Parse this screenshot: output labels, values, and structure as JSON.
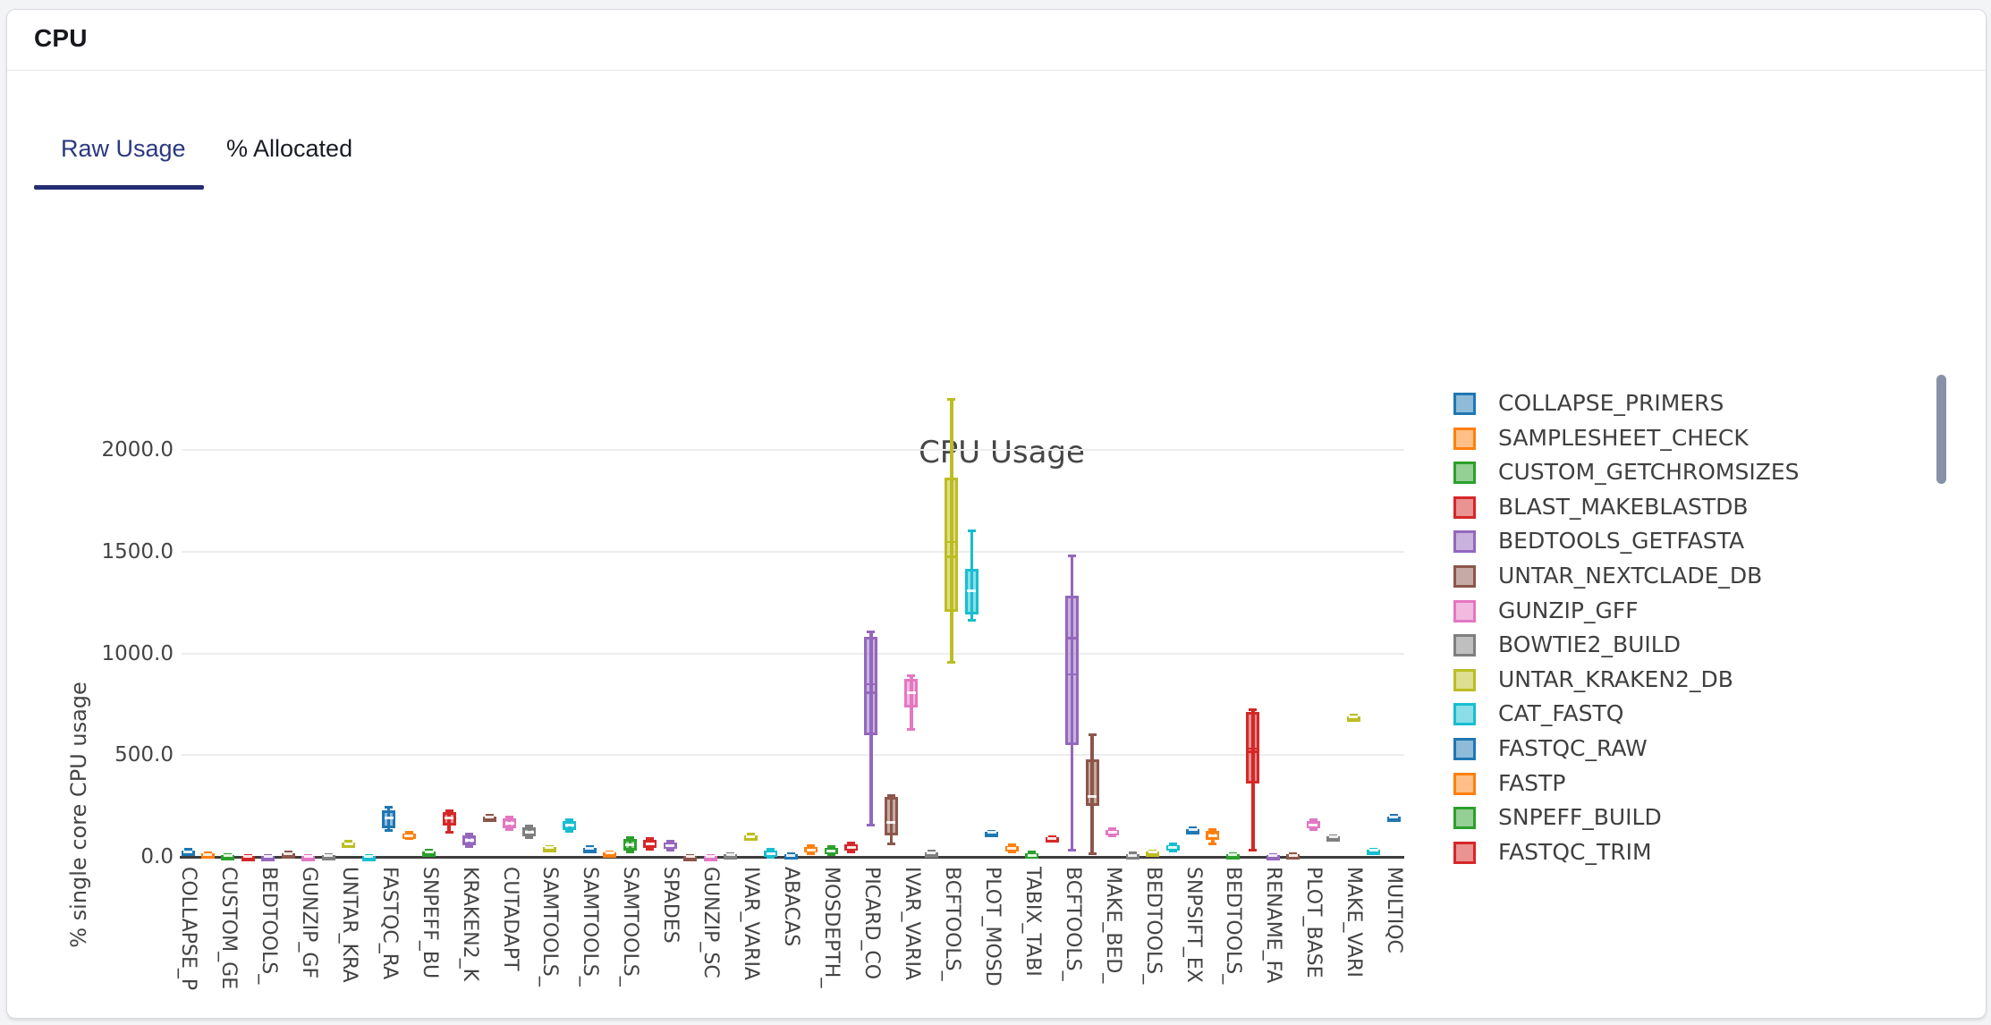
{
  "header": {
    "title": "CPU"
  },
  "tabs": {
    "active": "Raw Usage",
    "inactive": "% Allocated"
  },
  "legend_scrollbar_color": "#8792a8",
  "chart_data": {
    "type": "box",
    "title": "CPU Usage",
    "y_axis": {
      "title": "% single core CPU usage",
      "tick_labels": [
        "0.0",
        "500.0",
        "1000.0",
        "1500.0",
        "2000.0"
      ],
      "tick_values": [
        0,
        500,
        1000,
        1500,
        2000
      ],
      "range": [
        0,
        2350
      ],
      "grid": true
    },
    "x_axis": {
      "note": "61 box categories; tick labels shown for every other category, truncated",
      "tick_labels": [
        "COLLAPSE_P",
        "CUSTOM_GE",
        "BEDTOOLS_",
        "GUNZIP_GF",
        "UNTAR_KRA",
        "FASTQC_RA",
        "SNPEFF_BU",
        "KRAKEN2_K",
        "CUTADAPT",
        "SAMTOOLS_",
        "SAMTOOLS_",
        "SAMTOOLS_",
        "SPADES",
        "GUNZIP_SC",
        "IVAR_VARIA",
        "ABACAS",
        "MOSDEPTH_",
        "PICARD_CO",
        "IVAR_VARIA",
        "BCFTOOLS_",
        "PLOT_MOSD",
        "TABIX_TABI",
        "BCFTOOLS_",
        "MAKE_BED_",
        "BEDTOOLS_",
        "SNPSIFT_EX",
        "BEDTOOLS_",
        "RENAME_FA",
        "PLOT_BASE",
        "MAKE_VARI",
        "MULTIQC"
      ]
    },
    "palette": [
      "#1f77b4",
      "#ff7f0e",
      "#2ca02c",
      "#d62728",
      "#9467bd",
      "#8c564b",
      "#e377c2",
      "#7f7f7f",
      "#bcbd22",
      "#17becf"
    ],
    "legend": {
      "position": "right",
      "items": [
        {
          "label": "COLLAPSE_PRIMERS",
          "color_index": 0
        },
        {
          "label": "SAMPLESHEET_CHECK",
          "color_index": 1
        },
        {
          "label": "CUSTOM_GETCHROMSIZES",
          "color_index": 2
        },
        {
          "label": "BLAST_MAKEBLASTDB",
          "color_index": 3
        },
        {
          "label": "BEDTOOLS_GETFASTA",
          "color_index": 4
        },
        {
          "label": "UNTAR_NEXTCLADE_DB",
          "color_index": 5
        },
        {
          "label": "GUNZIP_GFF",
          "color_index": 6
        },
        {
          "label": "BOWTIE2_BUILD",
          "color_index": 7
        },
        {
          "label": "UNTAR_KRAKEN2_DB",
          "color_index": 8
        },
        {
          "label": "CAT_FASTQ",
          "color_index": 9
        },
        {
          "label": "FASTQC_RAW",
          "color_index": 0
        },
        {
          "label": "FASTP",
          "color_index": 1
        },
        {
          "label": "SNPEFF_BUILD",
          "color_index": 2
        },
        {
          "label": "FASTQC_TRIM",
          "color_index": 3
        }
      ]
    },
    "boxes": [
      {
        "k": 0,
        "color_index": 0,
        "stats": {
          "min": 18,
          "q1": 21,
          "med": 25,
          "q3": 30,
          "max": 36
        }
      },
      {
        "k": 1,
        "color_index": 1,
        "stats": {
          "min": 8,
          "q1": 11,
          "med": 13,
          "q3": 16,
          "max": 19
        }
      },
      {
        "k": 2,
        "color_index": 2,
        "stats": {
          "min": 3,
          "q1": 5,
          "med": 8,
          "q3": 10,
          "max": 12
        }
      },
      {
        "k": 3,
        "color_index": 3,
        "stats": {
          "min": 0,
          "q1": 1,
          "med": 3,
          "q3": 5,
          "max": 7
        }
      },
      {
        "k": 4,
        "color_index": 4,
        "stats": {
          "min": 1,
          "q1": 2,
          "med": 4,
          "q3": 6,
          "max": 8
        }
      },
      {
        "k": 5,
        "color_index": 5,
        "stats": {
          "min": 10,
          "q1": 13,
          "med": 16,
          "q3": 19,
          "max": 22
        }
      },
      {
        "k": 6,
        "color_index": 6,
        "stats": {
          "min": 0,
          "q1": 1,
          "med": 2,
          "q3": 4,
          "max": 5
        }
      },
      {
        "k": 7,
        "color_index": 7,
        "stats": {
          "min": 2,
          "q1": 4,
          "med": 6,
          "q3": 8,
          "max": 10
        }
      },
      {
        "k": 8,
        "color_index": 8,
        "stats": {
          "min": 55,
          "q1": 60,
          "med": 65,
          "q3": 70,
          "max": 75
        }
      },
      {
        "k": 9,
        "color_index": 9,
        "stats": {
          "min": 0,
          "q1": 1,
          "med": 3,
          "q3": 5,
          "max": 7
        }
      },
      {
        "k": 10,
        "color_index": 0,
        "stats": {
          "min": 130,
          "q1": 141,
          "med": 190,
          "q3": 229,
          "max": 243
        }
      },
      {
        "k": 11,
        "color_index": 1,
        "stats": {
          "min": 88,
          "q1": 95,
          "med": 105,
          "q3": 115,
          "max": 121
        }
      },
      {
        "k": 12,
        "color_index": 2,
        "stats": {
          "min": 15,
          "q1": 19,
          "med": 23,
          "q3": 27,
          "max": 31
        }
      },
      {
        "k": 13,
        "color_index": 3,
        "stats": {
          "min": 119,
          "q1": 155,
          "med": 190,
          "q3": 220,
          "max": 226
        }
      },
      {
        "k": 14,
        "color_index": 4,
        "stats": {
          "min": 50,
          "q1": 55,
          "med": 80,
          "q3": 104,
          "max": 110
        }
      },
      {
        "k": 15,
        "color_index": 5,
        "stats": {
          "min": 186,
          "q1": 191,
          "med": 195,
          "q3": 199,
          "max": 204
        }
      },
      {
        "k": 16,
        "color_index": 6,
        "stats": {
          "min": 134,
          "q1": 141,
          "med": 164,
          "q3": 189,
          "max": 196
        }
      },
      {
        "k": 17,
        "color_index": 7,
        "stats": {
          "min": 94,
          "q1": 101,
          "med": 120,
          "q3": 144,
          "max": 151
        }
      },
      {
        "k": 18,
        "color_index": 8,
        "stats": {
          "min": 36,
          "q1": 40,
          "med": 44,
          "q3": 48,
          "max": 52
        }
      },
      {
        "k": 19,
        "color_index": 9,
        "stats": {
          "min": 124,
          "q1": 132,
          "med": 154,
          "q3": 176,
          "max": 182
        }
      },
      {
        "k": 20,
        "color_index": 0,
        "stats": {
          "min": 31,
          "q1": 36,
          "med": 40,
          "q3": 45,
          "max": 50
        }
      },
      {
        "k": 21,
        "color_index": 1,
        "stats": {
          "min": 12,
          "q1": 15,
          "med": 18,
          "q3": 22,
          "max": 26
        }
      },
      {
        "k": 22,
        "color_index": 2,
        "stats": {
          "min": 24,
          "q1": 31,
          "med": 58,
          "q3": 88,
          "max": 96
        }
      },
      {
        "k": 23,
        "color_index": 3,
        "stats": {
          "min": 38,
          "q1": 44,
          "med": 64,
          "q3": 84,
          "max": 91
        }
      },
      {
        "k": 24,
        "color_index": 4,
        "stats": {
          "min": 34,
          "q1": 40,
          "med": 54,
          "q3": 70,
          "max": 76
        }
      },
      {
        "k": 25,
        "color_index": 5,
        "stats": {
          "min": 0,
          "q1": 2,
          "med": 4,
          "q3": 6,
          "max": 8
        }
      },
      {
        "k": 26,
        "color_index": 6,
        "stats": {
          "min": 0,
          "q1": 2,
          "med": 4,
          "q3": 6,
          "max": 8
        }
      },
      {
        "k": 27,
        "color_index": 7,
        "stats": {
          "min": 3,
          "q1": 6,
          "med": 9,
          "q3": 12,
          "max": 15
        }
      },
      {
        "k": 28,
        "color_index": 8,
        "stats": {
          "min": 92,
          "q1": 97,
          "med": 101,
          "q3": 105,
          "max": 110
        }
      },
      {
        "k": 29,
        "color_index": 9,
        "stats": {
          "min": 0,
          "q1": 2,
          "med": 14,
          "q3": 31,
          "max": 37
        }
      },
      {
        "k": 30,
        "color_index": 0,
        "stats": {
          "min": 0,
          "q1": 2,
          "med": 7,
          "q3": 13,
          "max": 17
        }
      },
      {
        "k": 31,
        "color_index": 1,
        "stats": {
          "min": 17,
          "q1": 22,
          "med": 34,
          "q3": 48,
          "max": 54
        }
      },
      {
        "k": 32,
        "color_index": 2,
        "stats": {
          "min": 9,
          "q1": 13,
          "med": 27,
          "q3": 44,
          "max": 51
        }
      },
      {
        "k": 33,
        "color_index": 3,
        "stats": {
          "min": 26,
          "q1": 31,
          "med": 46,
          "q3": 62,
          "max": 69
        }
      },
      {
        "k": 34,
        "color_index": 4,
        "stats": {
          "min": 155,
          "q1": 600,
          "med": 805,
          "q3": 1080,
          "max": 1105
        },
        "mean": 850
      },
      {
        "k": 35,
        "color_index": 5,
        "stats": {
          "min": 62,
          "q1": 106,
          "med": 170,
          "q3": 295,
          "max": 302
        },
        "mean": 200
      },
      {
        "k": 36,
        "color_index": 6,
        "stats": {
          "min": 626,
          "q1": 735,
          "med": 805,
          "q3": 875,
          "max": 892
        },
        "mean": 810
      },
      {
        "k": 37,
        "color_index": 7,
        "stats": {
          "min": 9,
          "q1": 14,
          "med": 18,
          "q3": 22,
          "max": 27
        }
      },
      {
        "k": 38,
        "color_index": 8,
        "stats": {
          "min": 955,
          "q1": 1203,
          "med": 1476,
          "q3": 1863,
          "max": 2251
        },
        "mean": 1546
      },
      {
        "k": 39,
        "color_index": 9,
        "stats": {
          "min": 1165,
          "q1": 1190,
          "med": 1308,
          "q3": 1414,
          "max": 1604
        },
        "mean": 1320
      },
      {
        "k": 40,
        "color_index": 0,
        "stats": {
          "min": 111,
          "q1": 115,
          "med": 119,
          "q3": 123,
          "max": 127
        }
      },
      {
        "k": 41,
        "color_index": 1,
        "stats": {
          "min": 24,
          "q1": 30,
          "med": 42,
          "q3": 54,
          "max": 60
        }
      },
      {
        "k": 42,
        "color_index": 2,
        "stats": {
          "min": 0,
          "q1": 3,
          "med": 8,
          "q3": 16,
          "max": 22
        }
      },
      {
        "k": 43,
        "color_index": 3,
        "stats": {
          "min": 84,
          "q1": 88,
          "med": 92,
          "q3": 96,
          "max": 100
        }
      },
      {
        "k": 44,
        "color_index": 4,
        "stats": {
          "min": 31,
          "q1": 551,
          "med": 1075,
          "q3": 1283,
          "max": 1481
        },
        "mean": 898
      },
      {
        "k": 45,
        "color_index": 5,
        "stats": {
          "min": 17,
          "q1": 250,
          "med": 295,
          "q3": 478,
          "max": 602
        },
        "mean": 340
      },
      {
        "k": 46,
        "color_index": 6,
        "stats": {
          "min": 105,
          "q1": 112,
          "med": 120,
          "q3": 130,
          "max": 137
        }
      },
      {
        "k": 47,
        "color_index": 7,
        "stats": {
          "min": 0,
          "q1": 3,
          "med": 8,
          "q3": 13,
          "max": 18
        }
      },
      {
        "k": 48,
        "color_index": 8,
        "stats": {
          "min": 14,
          "q1": 18,
          "med": 22,
          "q3": 26,
          "max": 30
        }
      },
      {
        "k": 49,
        "color_index": 9,
        "stats": {
          "min": 27,
          "q1": 33,
          "med": 44,
          "q3": 56,
          "max": 62
        }
      },
      {
        "k": 50,
        "color_index": 0,
        "stats": {
          "min": 127,
          "q1": 131,
          "med": 134,
          "q3": 137,
          "max": 141
        }
      },
      {
        "k": 51,
        "color_index": 1,
        "stats": {
          "min": 65,
          "q1": 84,
          "med": 104,
          "q3": 128,
          "max": 133
        }
      },
      {
        "k": 52,
        "color_index": 2,
        "stats": {
          "min": 4,
          "q1": 7,
          "med": 10,
          "q3": 13,
          "max": 16
        }
      },
      {
        "k": 53,
        "color_index": 3,
        "stats": {
          "min": 31,
          "q1": 361,
          "med": 515,
          "q3": 714,
          "max": 722
        },
        "mean": 530
      },
      {
        "k": 54,
        "color_index": 4,
        "stats": {
          "min": 0,
          "q1": 2,
          "med": 5,
          "q3": 8,
          "max": 11
        }
      },
      {
        "k": 55,
        "color_index": 5,
        "stats": {
          "min": 2,
          "q1": 5,
          "med": 8,
          "q3": 11,
          "max": 14
        }
      },
      {
        "k": 56,
        "color_index": 6,
        "stats": {
          "min": 136,
          "q1": 141,
          "med": 157,
          "q3": 176,
          "max": 182
        }
      },
      {
        "k": 57,
        "color_index": 7,
        "stats": {
          "min": 91,
          "q1": 95,
          "med": 98,
          "q3": 101,
          "max": 105
        }
      },
      {
        "k": 58,
        "color_index": 8,
        "stats": {
          "min": 680,
          "q1": 684,
          "med": 688,
          "q3": 692,
          "max": 696
        }
      },
      {
        "k": 59,
        "color_index": 9,
        "stats": {
          "min": 25,
          "q1": 29,
          "med": 32,
          "q3": 35,
          "max": 38
        }
      },
      {
        "k": 60,
        "color_index": 0,
        "stats": {
          "min": 189,
          "q1": 193,
          "med": 196,
          "q3": 200,
          "max": 204
        }
      }
    ]
  }
}
